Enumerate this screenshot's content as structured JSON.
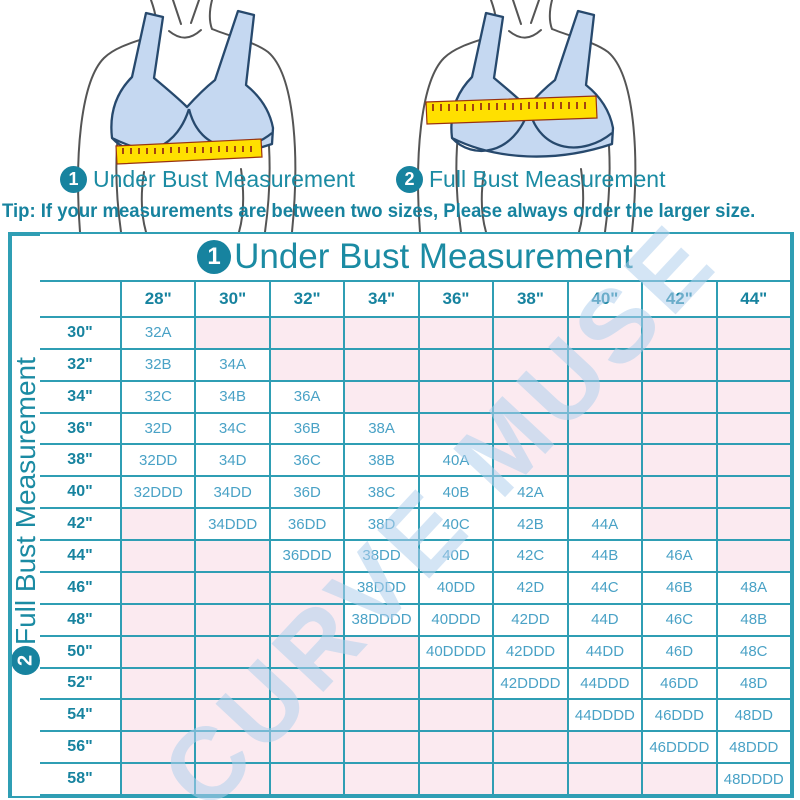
{
  "captions": {
    "underbust": {
      "num": "1",
      "label": "Under Bust Measurement"
    },
    "fullbust": {
      "num": "2",
      "label": "Full Bust Measurement"
    }
  },
  "tip": "Tip: If your measurements are between two sizes, Please always order the larger size.",
  "watermark": "CURVE MUSE",
  "chart_data": {
    "type": "table",
    "title": {
      "num": "1",
      "label": "Under Bust Measurement"
    },
    "side_axis": {
      "num": "2",
      "label": "Full Bust Measurement"
    },
    "columns": [
      "28\"",
      "30\"",
      "32\"",
      "34\"",
      "36\"",
      "38\"",
      "40\"",
      "42\"",
      "44\""
    ],
    "rows": [
      {
        "label": "30\"",
        "cells": [
          "32A",
          "",
          "",
          "",
          "",
          "",
          "",
          "",
          ""
        ]
      },
      {
        "label": "32\"",
        "cells": [
          "32B",
          "34A",
          "",
          "",
          "",
          "",
          "",
          "",
          ""
        ]
      },
      {
        "label": "34\"",
        "cells": [
          "32C",
          "34B",
          "36A",
          "",
          "",
          "",
          "",
          "",
          ""
        ]
      },
      {
        "label": "36\"",
        "cells": [
          "32D",
          "34C",
          "36B",
          "38A",
          "",
          "",
          "",
          "",
          ""
        ]
      },
      {
        "label": "38\"",
        "cells": [
          "32DD",
          "34D",
          "36C",
          "38B",
          "40A",
          "",
          "",
          "",
          ""
        ]
      },
      {
        "label": "40\"",
        "cells": [
          "32DDD",
          "34DD",
          "36D",
          "38C",
          "40B",
          "42A",
          "",
          "",
          ""
        ]
      },
      {
        "label": "42\"",
        "cells": [
          "",
          "34DDD",
          "36DD",
          "38D",
          "40C",
          "42B",
          "44A",
          "",
          ""
        ]
      },
      {
        "label": "44\"",
        "cells": [
          "",
          "",
          "36DDD",
          "38DD",
          "40D",
          "42C",
          "44B",
          "46A",
          ""
        ]
      },
      {
        "label": "46\"",
        "cells": [
          "",
          "",
          "",
          "38DDD",
          "40DD",
          "42D",
          "44C",
          "46B",
          "48A"
        ]
      },
      {
        "label": "48\"",
        "cells": [
          "",
          "",
          "",
          "38DDDD",
          "40DDD",
          "42DD",
          "44D",
          "46C",
          "48B"
        ]
      },
      {
        "label": "50\"",
        "cells": [
          "",
          "",
          "",
          "",
          "40DDDD",
          "42DDD",
          "44DD",
          "46D",
          "48C"
        ]
      },
      {
        "label": "52\"",
        "cells": [
          "",
          "",
          "",
          "",
          "",
          "42DDDD",
          "44DDD",
          "46DD",
          "48D"
        ]
      },
      {
        "label": "54\"",
        "cells": [
          "",
          "",
          "",
          "",
          "",
          "",
          "44DDDD",
          "46DDD",
          "48DD"
        ]
      },
      {
        "label": "56\"",
        "cells": [
          "",
          "",
          "",
          "",
          "",
          "",
          "",
          "46DDDD",
          "48DDD"
        ]
      },
      {
        "label": "58\"",
        "cells": [
          "",
          "",
          "",
          "",
          "",
          "",
          "",
          "",
          "48DDDD"
        ]
      }
    ]
  },
  "colors": {
    "teal_text": "#17839f",
    "grid_line": "#2f9eb4",
    "value_text": "#4aa2c6",
    "empty_cell_pink": "#fbeaf0",
    "watermark_blue": "#b0d0ec",
    "tape_yellow": "#ffe000",
    "bra_fill": "#c5d8f1",
    "bra_outline": "#27496d"
  }
}
